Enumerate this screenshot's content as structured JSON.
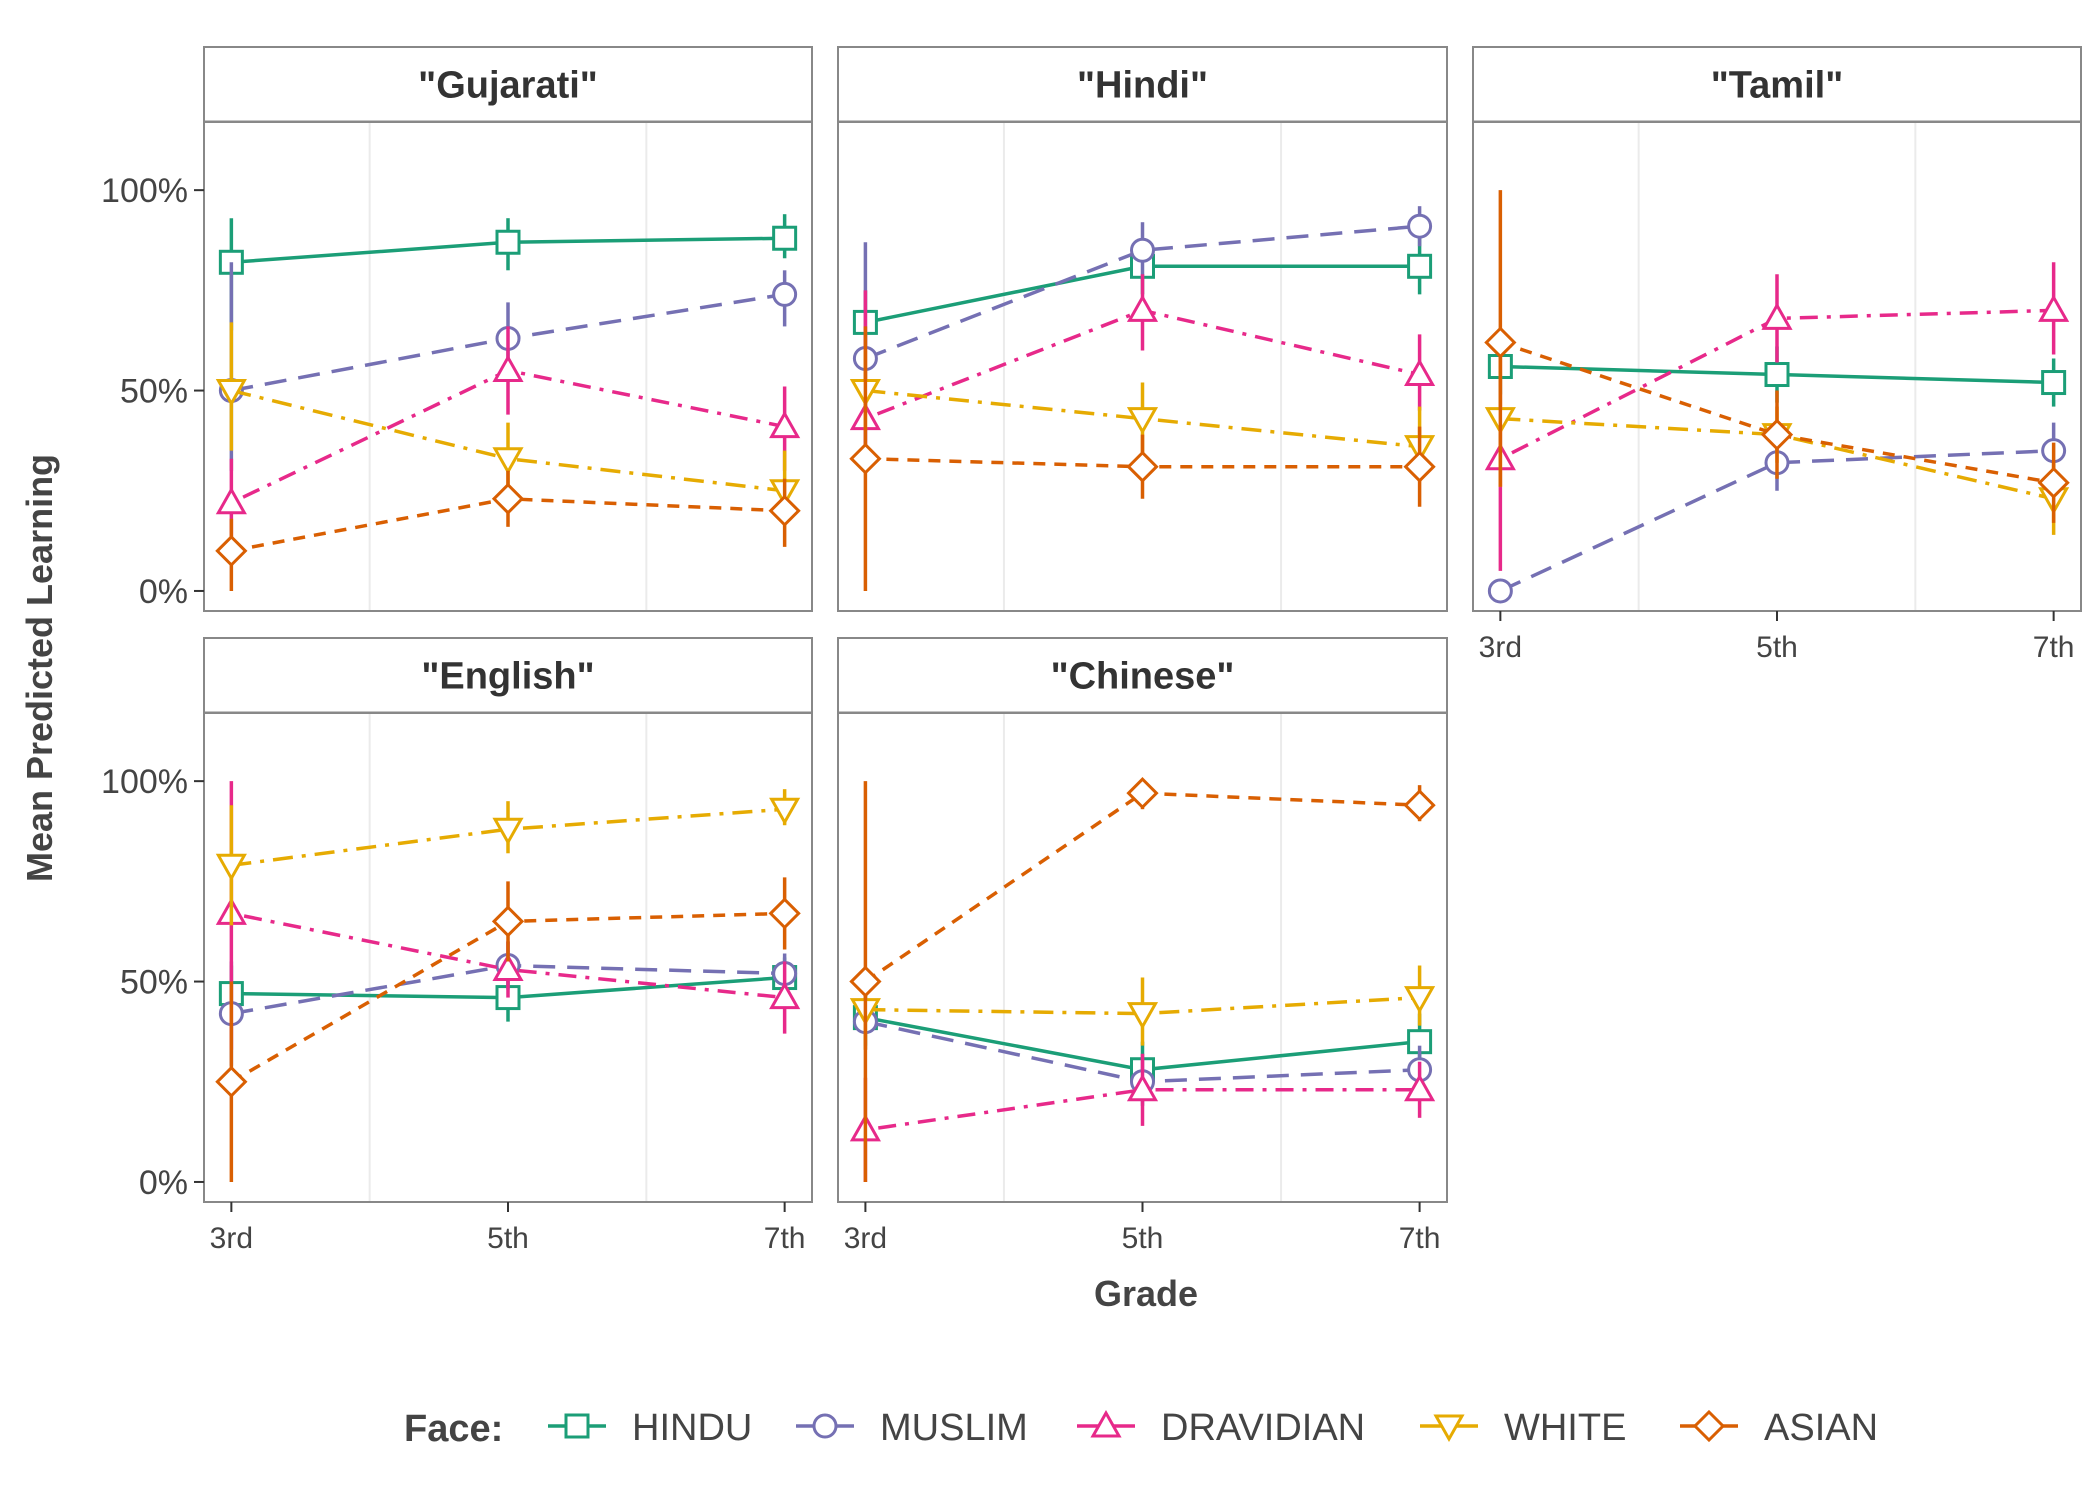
{
  "chart_data": {
    "type": "line",
    "panel_layout": "facet-wrap 3x2",
    "xlabel": "Grade",
    "ylabel": "Mean Predicted Learning",
    "x_categories": [
      "3rd",
      "5th",
      "7th"
    ],
    "ylim": [
      0,
      1
    ],
    "y_ticks": [
      "0%",
      "50%",
      "100%"
    ],
    "grid": "minor vertical gridlines only",
    "legend": {
      "title": "Face:",
      "position": "bottom",
      "entries": [
        "HINDU",
        "MUSLIM",
        "DRAVIDIAN",
        "WHITE",
        "ASIAN"
      ]
    },
    "series_styles": {
      "HINDU": {
        "color": "#1B9E77",
        "line": "solid",
        "marker": "square"
      },
      "MUSLIM": {
        "color": "#7570B3",
        "line": "longdash",
        "marker": "circle"
      },
      "DRAVIDIAN": {
        "color": "#E7298A",
        "line": "dotdash",
        "marker": "triangle-up"
      },
      "WHITE": {
        "color": "#E6AB02",
        "line": "dashdot",
        "marker": "triangle-down"
      },
      "ASIAN": {
        "color": "#D95F02",
        "line": "dashed",
        "marker": "diamond"
      }
    },
    "panels": [
      {
        "title": "\"Gujarati\"",
        "series": [
          {
            "name": "HINDU",
            "y": [
              0.82,
              0.87,
              0.88
            ],
            "lo": [
              0.65,
              0.8,
              0.83
            ],
            "hi": [
              0.93,
              0.93,
              0.94
            ]
          },
          {
            "name": "MUSLIM",
            "y": [
              0.5,
              0.63,
              0.74
            ],
            "lo": [
              0.3,
              0.54,
              0.66
            ],
            "hi": [
              0.82,
              0.72,
              0.8
            ]
          },
          {
            "name": "DRAVIDIAN",
            "y": [
              0.22,
              0.55,
              0.41
            ],
            "lo": [
              0.12,
              0.44,
              0.3
            ],
            "hi": [
              0.33,
              0.66,
              0.51
            ]
          },
          {
            "name": "WHITE",
            "y": [
              0.5,
              0.33,
              0.25
            ],
            "lo": [
              0.35,
              0.25,
              0.18
            ],
            "hi": [
              0.67,
              0.42,
              0.35
            ]
          },
          {
            "name": "ASIAN",
            "y": [
              0.1,
              0.23,
              0.2
            ],
            "lo": [
              0.0,
              0.16,
              0.11
            ],
            "hi": [
              0.18,
              0.3,
              0.28
            ]
          }
        ]
      },
      {
        "title": "\"Hindi\"",
        "series": [
          {
            "name": "HINDU",
            "y": [
              0.67,
              0.81,
              0.81
            ],
            "lo": [
              0.6,
              0.74,
              0.74
            ],
            "hi": [
              0.75,
              0.88,
              0.88
            ]
          },
          {
            "name": "MUSLIM",
            "y": [
              0.58,
              0.85,
              0.91
            ],
            "lo": [
              0.3,
              0.78,
              0.86
            ],
            "hi": [
              0.87,
              0.92,
              0.96
            ]
          },
          {
            "name": "DRAVIDIAN",
            "y": [
              0.43,
              0.7,
              0.54
            ],
            "lo": [
              0.3,
              0.6,
              0.45
            ],
            "hi": [
              0.75,
              0.79,
              0.64
            ]
          },
          {
            "name": "WHITE",
            "y": [
              0.5,
              0.43,
              0.36
            ],
            "lo": [
              0.4,
              0.34,
              0.28
            ],
            "hi": [
              0.6,
              0.52,
              0.46
            ]
          },
          {
            "name": "ASIAN",
            "y": [
              0.33,
              0.31,
              0.31
            ],
            "lo": [
              0.0,
              0.23,
              0.21
            ],
            "hi": [
              0.66,
              0.39,
              0.41
            ]
          }
        ]
      },
      {
        "title": "\"Tamil\"",
        "series": [
          {
            "name": "HINDU",
            "y": [
              0.56,
              0.54,
              0.52
            ],
            "lo": [
              0.49,
              0.47,
              0.46
            ],
            "hi": [
              0.63,
              0.61,
              0.58
            ]
          },
          {
            "name": "MUSLIM",
            "y": [
              0.0,
              0.32,
              0.35
            ],
            "lo": [
              0.0,
              0.25,
              0.28
            ],
            "hi": [
              0.0,
              0.4,
              0.42
            ]
          },
          {
            "name": "DRAVIDIAN",
            "y": [
              0.33,
              0.68,
              0.7
            ],
            "lo": [
              0.05,
              0.57,
              0.59
            ],
            "hi": [
              0.63,
              0.79,
              0.82
            ]
          },
          {
            "name": "WHITE",
            "y": [
              0.43,
              0.39,
              0.23
            ],
            "lo": [
              0.26,
              0.32,
              0.14
            ],
            "hi": [
              0.6,
              0.46,
              0.32
            ]
          },
          {
            "name": "ASIAN",
            "y": [
              0.62,
              0.39,
              0.27
            ],
            "lo": [
              0.26,
              0.28,
              0.17
            ],
            "hi": [
              1.0,
              0.5,
              0.37
            ]
          }
        ]
      },
      {
        "title": "\"English\"",
        "series": [
          {
            "name": "HINDU",
            "y": [
              0.47,
              0.46,
              0.51
            ],
            "lo": [
              0.4,
              0.4,
              0.46
            ],
            "hi": [
              0.54,
              0.52,
              0.56
            ]
          },
          {
            "name": "MUSLIM",
            "y": [
              0.42,
              0.54,
              0.52
            ],
            "lo": [
              0.29,
              0.48,
              0.47
            ],
            "hi": [
              0.55,
              0.6,
              0.57
            ]
          },
          {
            "name": "DRAVIDIAN",
            "y": [
              0.67,
              0.53,
              0.46
            ],
            "lo": [
              0.33,
              0.46,
              0.37
            ],
            "hi": [
              1.0,
              0.6,
              0.55
            ]
          },
          {
            "name": "WHITE",
            "y": [
              0.79,
              0.88,
              0.93
            ],
            "lo": [
              0.64,
              0.82,
              0.89
            ],
            "hi": [
              0.94,
              0.95,
              0.98
            ]
          },
          {
            "name": "ASIAN",
            "y": [
              0.25,
              0.65,
              0.67
            ],
            "lo": [
              0.0,
              0.55,
              0.58
            ],
            "hi": [
              0.5,
              0.75,
              0.76
            ]
          }
        ]
      },
      {
        "title": "\"Chinese\"",
        "series": [
          {
            "name": "HINDU",
            "y": [
              0.41,
              0.28,
              0.35
            ],
            "lo": [
              0.34,
              0.21,
              0.28
            ],
            "hi": [
              0.48,
              0.35,
              0.42
            ]
          },
          {
            "name": "MUSLIM",
            "y": [
              0.4,
              0.25,
              0.28
            ],
            "lo": [
              0.33,
              0.19,
              0.22
            ],
            "hi": [
              0.47,
              0.31,
              0.34
            ]
          },
          {
            "name": "DRAVIDIAN",
            "y": [
              0.13,
              0.23,
              0.23
            ],
            "lo": [
              0.0,
              0.14,
              0.16
            ],
            "hi": [
              0.26,
              0.32,
              0.3
            ]
          },
          {
            "name": "WHITE",
            "y": [
              0.43,
              0.42,
              0.46
            ],
            "lo": [
              0.33,
              0.34,
              0.39
            ],
            "hi": [
              0.53,
              0.51,
              0.54
            ]
          },
          {
            "name": "ASIAN",
            "y": [
              0.5,
              0.97,
              0.94
            ],
            "lo": [
              0.0,
              0.93,
              0.9
            ],
            "hi": [
              1.0,
              1.0,
              0.99
            ]
          }
        ]
      }
    ]
  }
}
